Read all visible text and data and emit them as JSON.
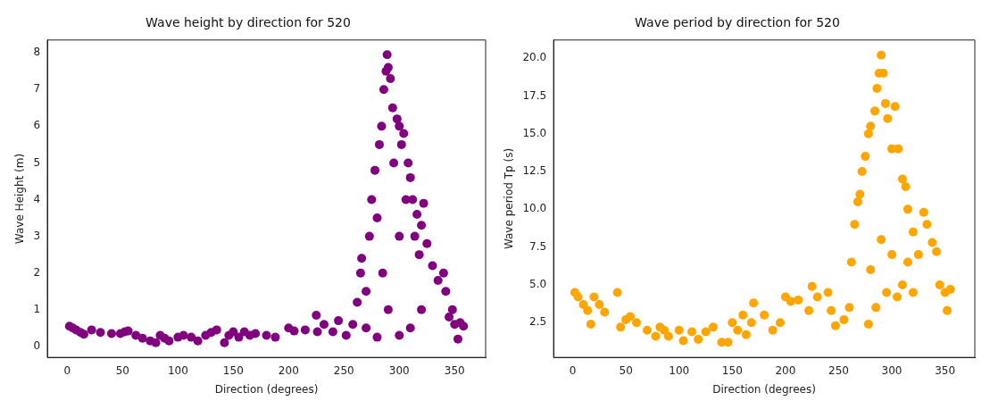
{
  "chart_data": [
    {
      "type": "scatter",
      "title": "Wave height by direction for 520",
      "xlabel": "Direction (degrees)",
      "ylabel": "Wave Height (m)",
      "color": "#800080",
      "marker": "circle",
      "grid": false,
      "legend": false,
      "xlim": [
        -18,
        378
      ],
      "ylim": [
        -0.3,
        8.35
      ],
      "xticks": [
        0,
        50,
        100,
        150,
        200,
        250,
        300,
        350
      ],
      "yticks": [
        0,
        1,
        2,
        3,
        4,
        5,
        6,
        7,
        8
      ],
      "x": [
        2,
        5,
        8,
        12,
        15,
        22,
        30,
        40,
        48,
        52,
        55,
        62,
        68,
        75,
        80,
        84,
        88,
        92,
        100,
        105,
        112,
        118,
        125,
        130,
        135,
        142,
        146,
        150,
        155,
        160,
        165,
        170,
        180,
        188,
        200,
        205,
        215,
        225,
        226,
        232,
        240,
        245,
        252,
        258,
        262,
        265,
        266,
        270,
        273,
        275,
        278,
        280,
        282,
        284,
        286,
        288,
        289,
        290,
        292,
        294,
        295,
        298,
        300,
        302,
        304,
        306,
        308,
        310,
        312,
        314,
        316,
        318,
        320,
        322,
        325,
        330,
        335,
        340,
        342,
        345,
        348,
        350,
        355,
        358,
        353,
        280,
        300,
        290,
        310,
        320,
        270,
        285,
        300
      ],
      "values": [
        0.55,
        0.5,
        0.45,
        0.38,
        0.33,
        0.45,
        0.38,
        0.35,
        0.35,
        0.4,
        0.42,
        0.3,
        0.22,
        0.15,
        0.1,
        0.3,
        0.22,
        0.15,
        0.25,
        0.3,
        0.25,
        0.15,
        0.3,
        0.38,
        0.45,
        0.1,
        0.3,
        0.4,
        0.25,
        0.4,
        0.3,
        0.35,
        0.3,
        0.25,
        0.5,
        0.42,
        0.45,
        0.85,
        0.4,
        0.6,
        0.4,
        0.7,
        0.3,
        0.6,
        1.2,
        2.0,
        2.4,
        1.5,
        3.0,
        4.0,
        4.8,
        3.5,
        5.5,
        6.0,
        7.0,
        7.5,
        7.95,
        7.6,
        7.3,
        6.5,
        5.0,
        6.2,
        6.0,
        5.5,
        5.8,
        4.0,
        5.0,
        4.6,
        4.0,
        3.0,
        3.6,
        2.5,
        3.3,
        3.9,
        2.8,
        2.2,
        1.8,
        2.0,
        1.5,
        0.8,
        1.0,
        0.6,
        0.65,
        0.55,
        0.2,
        0.25,
        0.3,
        1.0,
        0.5,
        1.0,
        0.5,
        2.0,
        3.0
      ]
    },
    {
      "type": "scatter",
      "title": "Wave period by direction for 520",
      "xlabel": "Direction (degrees)",
      "ylabel": "Wave period Tp (s)",
      "color": "#ffa500",
      "marker": "circle",
      "grid": false,
      "legend": false,
      "xlim": [
        -18,
        378
      ],
      "ylim": [
        0.2,
        21.2
      ],
      "xticks": [
        0,
        50,
        100,
        150,
        200,
        250,
        300,
        350
      ],
      "yticks": [
        {
          "value": 2.5,
          "label": "2.5"
        },
        {
          "value": 5,
          "label": "5.0"
        },
        {
          "value": 7.5,
          "label": "7.5"
        },
        {
          "value": 10,
          "label": "10.0"
        },
        {
          "value": 12.5,
          "label": "12.5"
        },
        {
          "value": 15,
          "label": "15.0"
        },
        {
          "value": 17.5,
          "label": "17.5"
        },
        {
          "value": 20,
          "label": "20.0"
        }
      ],
      "x": [
        2,
        5,
        10,
        14,
        17,
        20,
        25,
        30,
        42,
        45,
        50,
        54,
        60,
        70,
        78,
        82,
        86,
        90,
        100,
        104,
        112,
        118,
        125,
        132,
        140,
        146,
        150,
        155,
        160,
        163,
        168,
        170,
        180,
        188,
        195,
        200,
        205,
        212,
        222,
        225,
        230,
        240,
        243,
        247,
        255,
        260,
        262,
        265,
        268,
        270,
        272,
        275,
        278,
        280,
        284,
        286,
        288,
        290,
        292,
        294,
        296,
        300,
        303,
        306,
        310,
        313,
        315,
        320,
        325,
        330,
        333,
        338,
        342,
        345,
        350,
        355,
        352,
        278,
        285,
        295,
        305,
        310,
        320,
        290,
        300,
        280,
        315
      ],
      "values": [
        4.5,
        4.2,
        3.7,
        3.3,
        2.4,
        4.2,
        3.7,
        3.2,
        4.5,
        2.2,
        2.7,
        2.9,
        2.5,
        2.0,
        1.6,
        2.2,
        2.0,
        1.6,
        2.0,
        1.3,
        1.9,
        1.4,
        1.9,
        2.2,
        1.2,
        1.2,
        2.5,
        2.0,
        3.0,
        1.7,
        2.5,
        3.8,
        3.0,
        2.0,
        2.5,
        4.2,
        3.9,
        4.0,
        3.3,
        4.9,
        4.2,
        4.5,
        3.3,
        2.3,
        2.7,
        3.5,
        6.5,
        9.0,
        10.5,
        11.0,
        12.5,
        13.5,
        15.0,
        15.5,
        16.5,
        18.0,
        19.0,
        20.2,
        19.0,
        17.0,
        16.0,
        14.0,
        16.8,
        14.0,
        12.0,
        11.5,
        10.0,
        8.5,
        7.0,
        9.8,
        9.0,
        7.8,
        7.2,
        5.0,
        4.5,
        4.7,
        3.3,
        2.4,
        3.5,
        4.5,
        4.2,
        5.0,
        4.5,
        8.0,
        7.0,
        6.0,
        6.5
      ]
    }
  ]
}
